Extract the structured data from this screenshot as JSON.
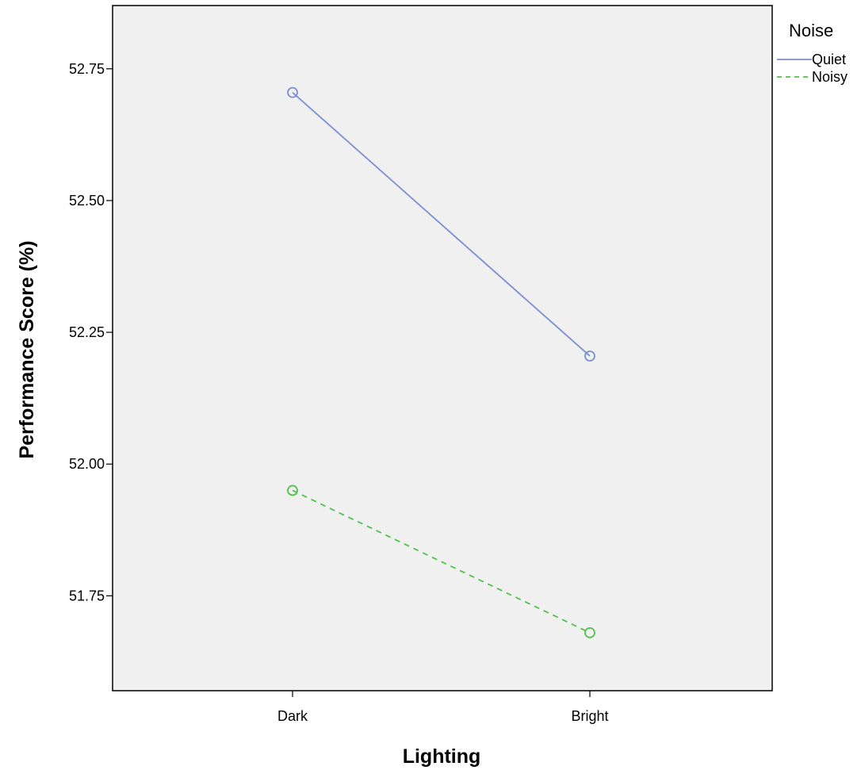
{
  "chart_data": {
    "type": "line",
    "title": "",
    "xlabel": "Lighting",
    "ylabel": "Performance Score (%)",
    "categories": [
      "Dark",
      "Bright"
    ],
    "ylim": [
      51.57,
      52.87
    ],
    "yticks": [
      "51.75",
      "52.00",
      "52.25",
      "52.50",
      "52.75"
    ],
    "grid": false,
    "legend": {
      "title": "Noise",
      "position": "right"
    },
    "series": [
      {
        "name": "Quiet",
        "values": [
          52.705,
          52.205
        ],
        "color": "#7b8fd1",
        "dash": "solid"
      },
      {
        "name": "Noisy",
        "values": [
          51.95,
          51.68
        ],
        "color": "#4dc24d",
        "dash": "dashed"
      }
    ]
  }
}
